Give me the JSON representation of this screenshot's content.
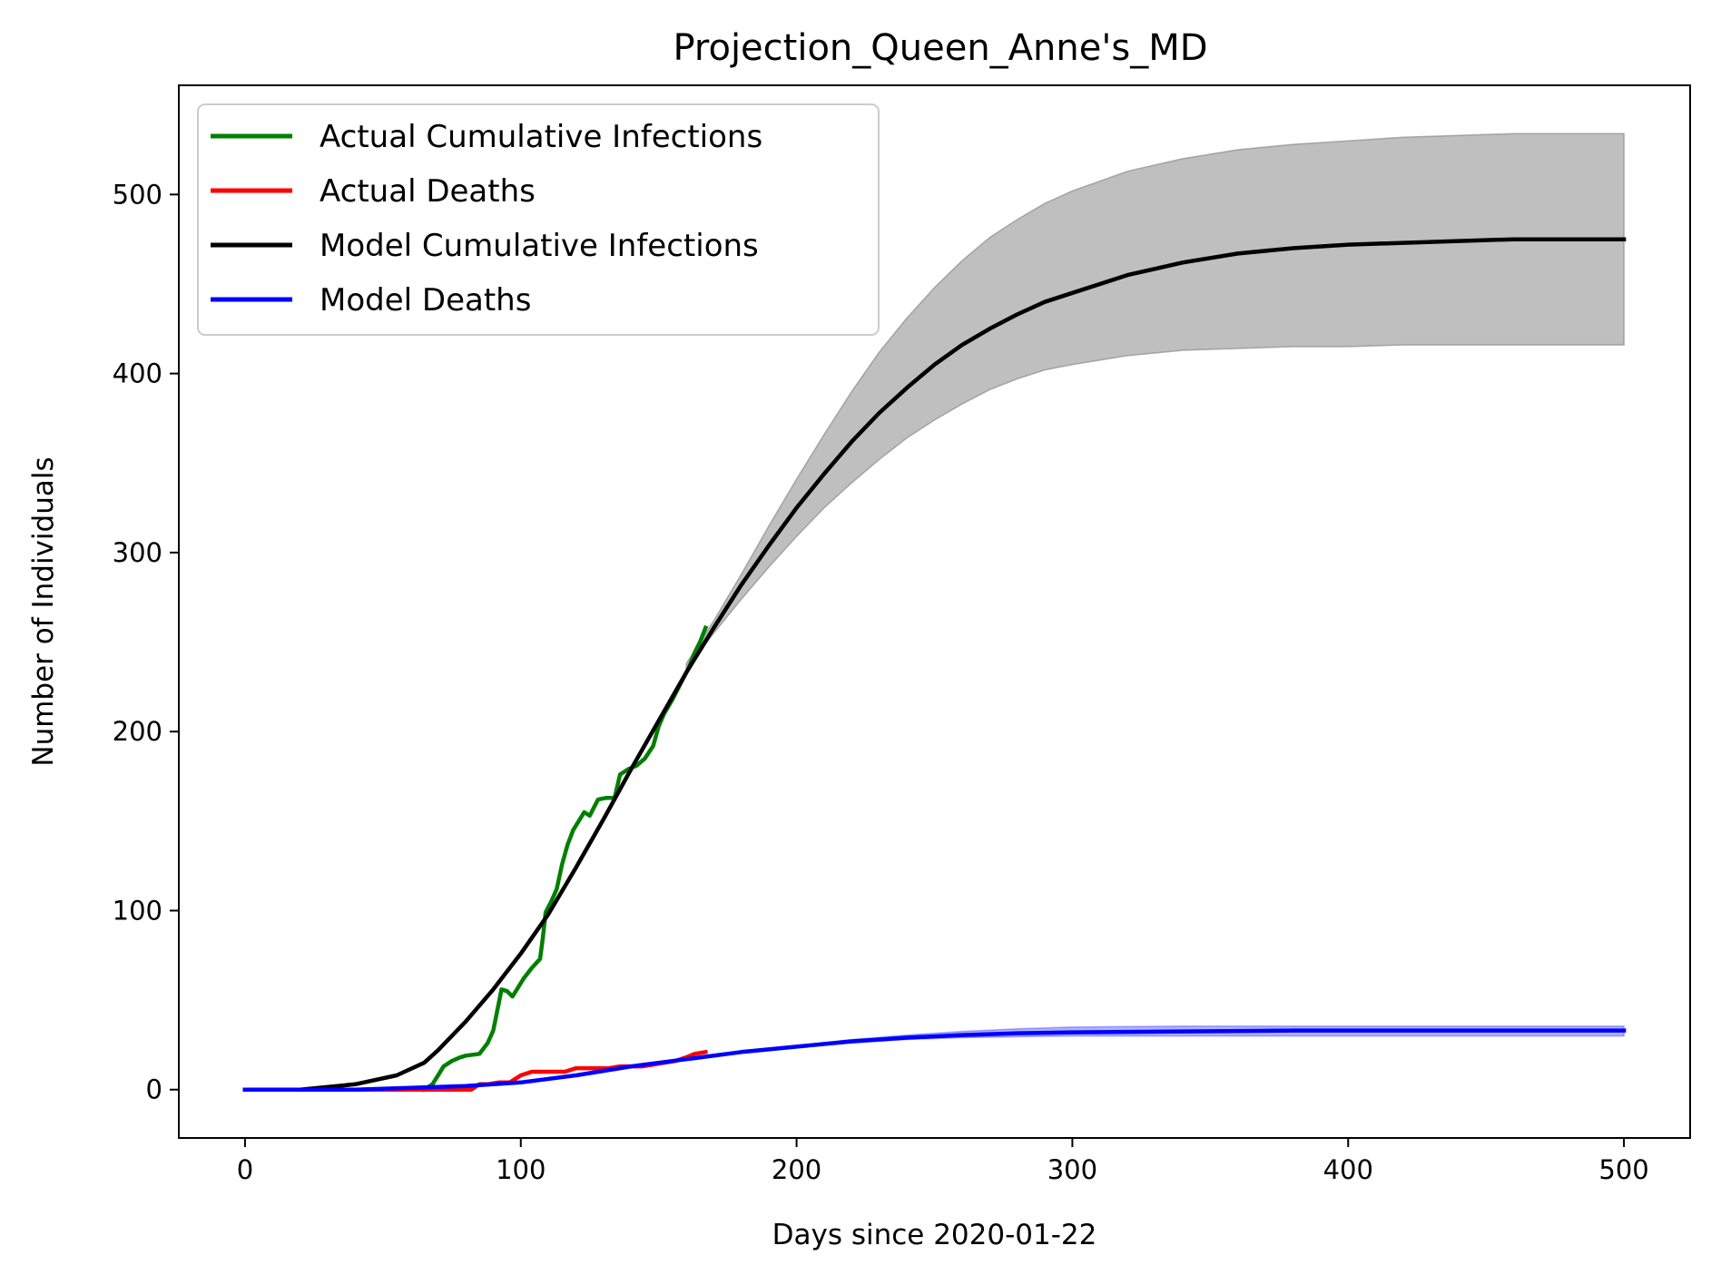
{
  "chart_data": {
    "type": "line",
    "title": "Projection_Queen_Anne's_MD",
    "xlabel": "Days since 2020-01-22",
    "ylabel": "Number of Individuals",
    "xlim": [
      -24,
      524
    ],
    "ylim": [
      -27,
      561
    ],
    "xticks": [
      0,
      100,
      200,
      300,
      400,
      500
    ],
    "yticks": [
      0,
      100,
      200,
      300,
      400,
      500
    ],
    "xtick_labels": [
      "0",
      "100",
      "200",
      "300",
      "400",
      "500"
    ],
    "ytick_labels": [
      "0",
      "100",
      "200",
      "300",
      "400",
      "500"
    ],
    "grid": false,
    "legend_position": "upper-left",
    "series": [
      {
        "name": "Actual Cumulative Infections",
        "color": "#008000",
        "x": [
          65,
          68,
          70,
          72,
          75,
          78,
          80,
          85,
          88,
          90,
          92,
          93,
          95,
          97,
          99,
          101,
          104,
          107,
          108,
          109,
          111,
          113,
          115,
          117,
          119,
          121,
          123,
          125,
          128,
          131,
          134,
          136,
          139,
          142,
          145,
          148,
          150,
          152,
          155,
          158,
          161,
          163,
          165,
          167
        ],
        "y": [
          0,
          3,
          8,
          13,
          16,
          18,
          19,
          20,
          26,
          33,
          48,
          56,
          55,
          52,
          57,
          62,
          68,
          73,
          85,
          99,
          105,
          112,
          126,
          137,
          145,
          150,
          155,
          153,
          162,
          163,
          163,
          176,
          179,
          181,
          185,
          192,
          203,
          210,
          218,
          227,
          236,
          244,
          250,
          258
        ]
      },
      {
        "name": "Actual Deaths",
        "color": "#ff0000",
        "x": [
          0,
          80,
          82,
          85,
          88,
          92,
          96,
          100,
          104,
          108,
          112,
          116,
          120,
          124,
          128,
          132,
          136,
          140,
          144,
          148,
          152,
          156,
          160,
          163,
          167
        ],
        "y": [
          0,
          0,
          0,
          3,
          3,
          4,
          4,
          8,
          10,
          10,
          10,
          10,
          12,
          12,
          12,
          12,
          13,
          13,
          13,
          14,
          15,
          16,
          18,
          20,
          21
        ]
      },
      {
        "name": "Model Cumulative Infections",
        "color": "#000000",
        "x": [
          0,
          20,
          40,
          55,
          65,
          70,
          80,
          90,
          100,
          110,
          120,
          130,
          140,
          150,
          160,
          170,
          180,
          190,
          200,
          210,
          220,
          230,
          240,
          250,
          260,
          270,
          280,
          290,
          300,
          320,
          340,
          360,
          380,
          400,
          420,
          440,
          460,
          480,
          500
        ],
        "y": [
          0,
          0,
          3,
          8,
          15,
          22,
          38,
          56,
          76,
          98,
          124,
          151,
          179,
          206,
          233,
          258,
          282,
          304,
          325,
          344,
          362,
          378,
          392,
          405,
          416,
          425,
          433,
          440,
          445,
          455,
          462,
          467,
          470,
          472,
          473,
          474,
          475,
          475,
          475
        ]
      },
      {
        "name": "Model Deaths",
        "color": "#0000ff",
        "x": [
          0,
          20,
          40,
          60,
          80,
          100,
          120,
          140,
          160,
          180,
          200,
          220,
          240,
          260,
          280,
          300,
          340,
          380,
          420,
          460,
          500
        ],
        "y": [
          0,
          0,
          0,
          1,
          2,
          4,
          8,
          13,
          17,
          21,
          24,
          27,
          29,
          30.5,
          31.5,
          32,
          32.5,
          33,
          33,
          33,
          33
        ]
      }
    ],
    "bands": [
      {
        "color": "#808080",
        "x": [
          160,
          170,
          180,
          190,
          200,
          210,
          220,
          230,
          240,
          250,
          260,
          270,
          280,
          290,
          300,
          320,
          340,
          360,
          380,
          400,
          420,
          440,
          460,
          480,
          500
        ],
        "lower": [
          235,
          255,
          274,
          292,
          309,
          325,
          339,
          352,
          364,
          374,
          383,
          391,
          397,
          402,
          405,
          410,
          413,
          414,
          415,
          415,
          416,
          416,
          416,
          416,
          416
        ],
        "upper": [
          238,
          262,
          288,
          315,
          341,
          366,
          390,
          412,
          431,
          448,
          463,
          476,
          486,
          495,
          502,
          513,
          520,
          525,
          528,
          530,
          532,
          533,
          534,
          534,
          534
        ]
      },
      {
        "color": "#0000ff",
        "x": [
          200,
          220,
          240,
          260,
          280,
          300,
          340,
          380,
          420,
          460,
          500
        ],
        "lower": [
          23.5,
          26,
          28,
          29,
          29.5,
          30,
          30,
          30,
          30,
          30,
          30
        ],
        "upper": [
          24.5,
          28,
          30.5,
          32.5,
          34,
          35,
          35.5,
          35.5,
          35.5,
          35.5,
          35.5
        ]
      }
    ]
  }
}
